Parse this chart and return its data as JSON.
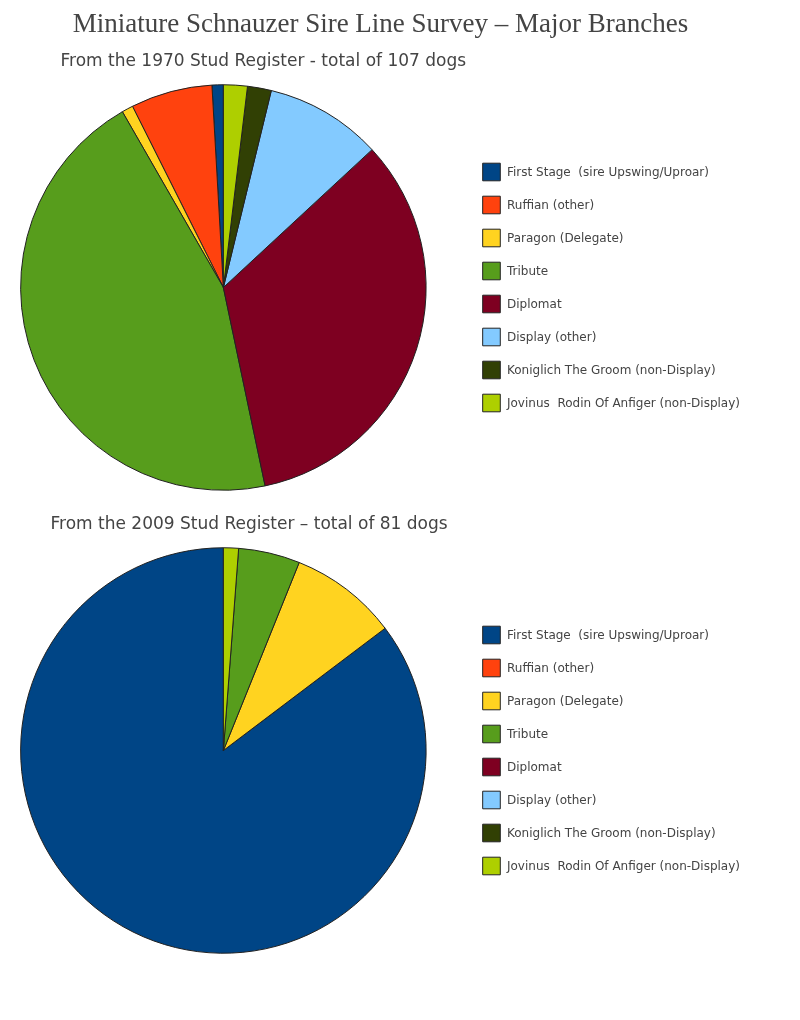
{
  "chart_data": [
    {
      "type": "pie",
      "title": "Miniature Schnauzer Sire Line Survey – Major Branches",
      "subtitle": "From the 1970 Stud Register - total of 107 dogs",
      "legend": "right",
      "categories": [
        "First Stage  (sire Upswing/Uproar)",
        "Ruffian (other)",
        "Paragon (Delegate)",
        "Tribute",
        "Diplomat",
        "Display (other)",
        "Koniglich The Groom (non-Display)",
        "Jovinus  Rodin Of Anfiger (non-Display)"
      ],
      "values": [
        0.9,
        6.5,
        0.9,
        45.0,
        33.6,
        9.3,
        1.9,
        1.9
      ],
      "colors": [
        "#004586",
        "#ff420e",
        "#ffd320",
        "#579d1c",
        "#7e0021",
        "#83caff",
        "#314004",
        "#aecf00"
      ]
    },
    {
      "type": "pie",
      "title": "From the 2009 Stud Register – total of 81 dogs",
      "legend": "right",
      "categories": [
        "First Stage  (sire Upswing/Uproar)",
        "Ruffian (other)",
        "Paragon (Delegate)",
        "Tribute",
        "Diplomat",
        "Display (other)",
        "Koniglich The Groom (non-Display)",
        "Jovinus  Rodin Of Anfiger (non-Display)"
      ],
      "values": [
        85.3,
        0,
        8.6,
        4.9,
        0,
        0,
        0,
        1.2
      ],
      "colors": [
        "#004586",
        "#ff420e",
        "#ffd320",
        "#579d1c",
        "#7e0021",
        "#83caff",
        "#314004",
        "#aecf00"
      ]
    }
  ]
}
